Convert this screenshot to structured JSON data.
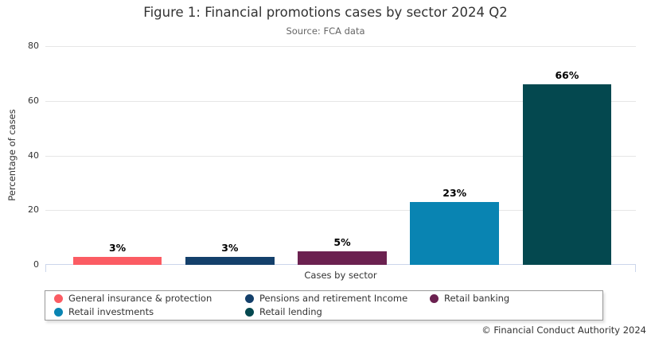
{
  "chart_data": {
    "type": "bar",
    "title": "Figure 1: Financial promotions cases by sector 2024 Q2",
    "subtitle": "Source: FCA data",
    "xlabel": "Cases by sector",
    "ylabel": "Percentage of cases",
    "ylim": [
      0,
      80
    ],
    "yticks": [
      0,
      20,
      40,
      60,
      80
    ],
    "grid": true,
    "legend_position": "bottom",
    "categories": [
      "General insurance & protection",
      "Pensions and retirement Income",
      "Retail banking",
      "Retail investments",
      "Retail lending"
    ],
    "values": [
      3,
      3,
      5,
      23,
      66
    ],
    "data_labels": [
      "3%",
      "3%",
      "5%",
      "23%",
      "66%"
    ],
    "colors": [
      "#FB5C63",
      "#14406B",
      "#6B2150",
      "#0984B2",
      "#04484F"
    ],
    "gridline_color": "#E6E6E6",
    "axis_line_color": "#CCD6EB"
  },
  "footer": {
    "copyright": "© Financial Conduct Authority 2024"
  }
}
